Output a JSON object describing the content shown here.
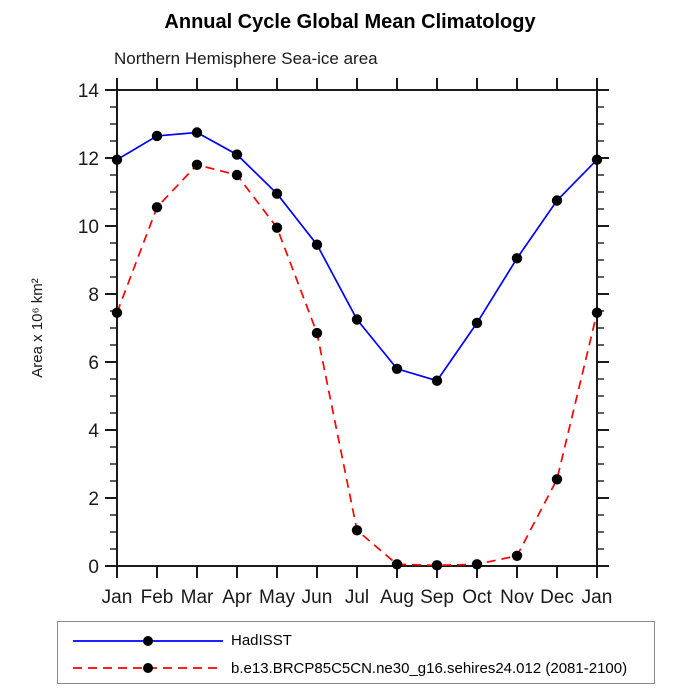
{
  "chart_data": {
    "type": "line",
    "title": "Annual Cycle Global Mean Climatology",
    "subtitle": "Northern Hemisphere Sea-ice area",
    "ylabel": "Area x 10⁶ km²",
    "xlabel": "",
    "categories": [
      "Jan",
      "Feb",
      "Mar",
      "Apr",
      "May",
      "Jun",
      "Jul",
      "Aug",
      "Sep",
      "Oct",
      "Nov",
      "Dec",
      "Jan"
    ],
    "ylim": [
      0,
      14
    ],
    "ytick_major_step": 2,
    "ytick_minor_step": 0.5,
    "grid": false,
    "legend_position": "bottom-left-box",
    "axis_color": "#1a1a1a",
    "marker": "filled-circle",
    "marker_color": "#000000",
    "series": [
      {
        "name": "HadISST",
        "color": "#0000ff",
        "line_style": "solid",
        "values": [
          11.95,
          12.65,
          12.75,
          12.1,
          10.95,
          9.45,
          7.25,
          5.8,
          5.45,
          7.15,
          9.05,
          10.75,
          11.95
        ]
      },
      {
        "name": "b.e13.BRCP85C5CN.ne30_g16.sehires24.012 (2081-2100)",
        "color": "#ff0000",
        "line_style": "dashed",
        "values": [
          7.45,
          10.55,
          11.8,
          11.5,
          9.95,
          6.85,
          1.05,
          0.05,
          0.02,
          0.05,
          0.3,
          2.55,
          7.45
        ]
      }
    ]
  }
}
